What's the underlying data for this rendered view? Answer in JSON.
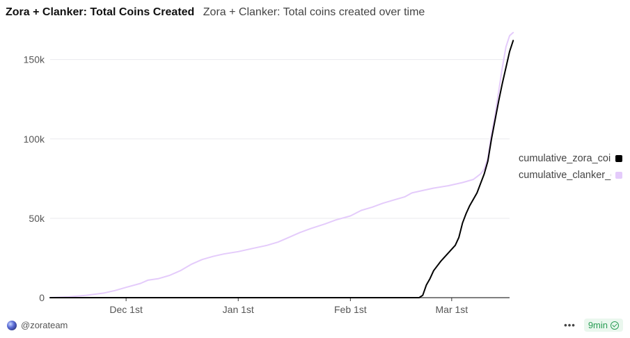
{
  "header": {
    "title": "Zora + Clanker: Total Coins Created",
    "subtitle": "Zora + Clanker: Total coins created over time"
  },
  "footer": {
    "author": "@zorateam",
    "more_label": "•••",
    "refresh_label": "9min"
  },
  "colors": {
    "zora": "#000000",
    "clanker": "#e4cbfb",
    "grid": "#e9e9ee",
    "axis": "#333333",
    "tick_text": "#555555"
  },
  "chart_data": {
    "type": "line",
    "title": "Zora + Clanker: Total Coins Created",
    "subtitle": "Zora + Clanker: Total coins created over time",
    "xlabel": "",
    "ylabel": "",
    "xlim": [
      "2024-11-10",
      "2025-03-17"
    ],
    "ylim": [
      0,
      170000
    ],
    "x_ticks": [
      {
        "date": "2024-12-01",
        "label": "Dec 1st"
      },
      {
        "date": "2025-01-01",
        "label": "Jan 1st"
      },
      {
        "date": "2025-02-01",
        "label": "Feb 1st"
      },
      {
        "date": "2025-03-01",
        "label": "Mar 1st"
      }
    ],
    "y_ticks": [
      {
        "value": 0,
        "label": "0"
      },
      {
        "value": 50000,
        "label": "50k"
      },
      {
        "value": 100000,
        "label": "100k"
      },
      {
        "value": 150000,
        "label": "150k"
      }
    ],
    "grid": true,
    "legend_position": "right",
    "series": [
      {
        "name": "cumulative_zora_coins",
        "color": "#000000",
        "points": [
          [
            "2024-11-10",
            0
          ],
          [
            "2025-02-20",
            0
          ],
          [
            "2025-02-21",
            1500
          ],
          [
            "2025-02-22",
            8000
          ],
          [
            "2025-02-23",
            12000
          ],
          [
            "2025-02-24",
            17000
          ],
          [
            "2025-02-26",
            23000
          ],
          [
            "2025-02-28",
            28000
          ],
          [
            "2025-03-02",
            33000
          ],
          [
            "2025-03-03",
            38000
          ],
          [
            "2025-03-04",
            47000
          ],
          [
            "2025-03-05",
            53000
          ],
          [
            "2025-03-06",
            58000
          ],
          [
            "2025-03-08",
            66000
          ],
          [
            "2025-03-10",
            78000
          ],
          [
            "2025-03-11",
            86000
          ],
          [
            "2025-03-12",
            100000
          ],
          [
            "2025-03-13",
            112000
          ],
          [
            "2025-03-14",
            124000
          ],
          [
            "2025-03-15",
            135000
          ],
          [
            "2025-03-16",
            145000
          ],
          [
            "2025-03-17",
            155000
          ],
          [
            "2025-03-18",
            162000
          ]
        ]
      },
      {
        "name": "cumulative_clanker_coins",
        "color": "#e4cbfb",
        "points": [
          [
            "2024-11-10",
            0
          ],
          [
            "2024-11-15",
            500
          ],
          [
            "2024-11-20",
            1500
          ],
          [
            "2024-11-25",
            3000
          ],
          [
            "2024-11-28",
            4500
          ],
          [
            "2024-12-01",
            6500
          ],
          [
            "2024-12-05",
            9000
          ],
          [
            "2024-12-07",
            11000
          ],
          [
            "2024-12-10",
            12000
          ],
          [
            "2024-12-13",
            14000
          ],
          [
            "2024-12-16",
            17000
          ],
          [
            "2024-12-19",
            21000
          ],
          [
            "2024-12-22",
            24000
          ],
          [
            "2024-12-25",
            26000
          ],
          [
            "2024-12-28",
            27500
          ],
          [
            "2025-01-01",
            29000
          ],
          [
            "2025-01-05",
            31000
          ],
          [
            "2025-01-09",
            33000
          ],
          [
            "2025-01-12",
            35000
          ],
          [
            "2025-01-15",
            38000
          ],
          [
            "2025-01-18",
            41000
          ],
          [
            "2025-01-21",
            43500
          ],
          [
            "2025-01-25",
            46500
          ],
          [
            "2025-01-28",
            49000
          ],
          [
            "2025-02-01",
            51500
          ],
          [
            "2025-02-04",
            55000
          ],
          [
            "2025-02-07",
            57000
          ],
          [
            "2025-02-10",
            59500
          ],
          [
            "2025-02-13",
            61500
          ],
          [
            "2025-02-16",
            63500
          ],
          [
            "2025-02-18",
            66000
          ],
          [
            "2025-02-21",
            67500
          ],
          [
            "2025-02-24",
            69000
          ],
          [
            "2025-02-28",
            70500
          ],
          [
            "2025-03-04",
            72500
          ],
          [
            "2025-03-07",
            74500
          ],
          [
            "2025-03-09",
            78000
          ],
          [
            "2025-03-10",
            81000
          ],
          [
            "2025-03-11",
            88000
          ],
          [
            "2025-03-12",
            103000
          ],
          [
            "2025-03-13",
            115000
          ],
          [
            "2025-03-14",
            130000
          ],
          [
            "2025-03-15",
            145000
          ],
          [
            "2025-03-16",
            158000
          ],
          [
            "2025-03-17",
            165000
          ],
          [
            "2025-03-18",
            167000
          ]
        ]
      }
    ]
  }
}
